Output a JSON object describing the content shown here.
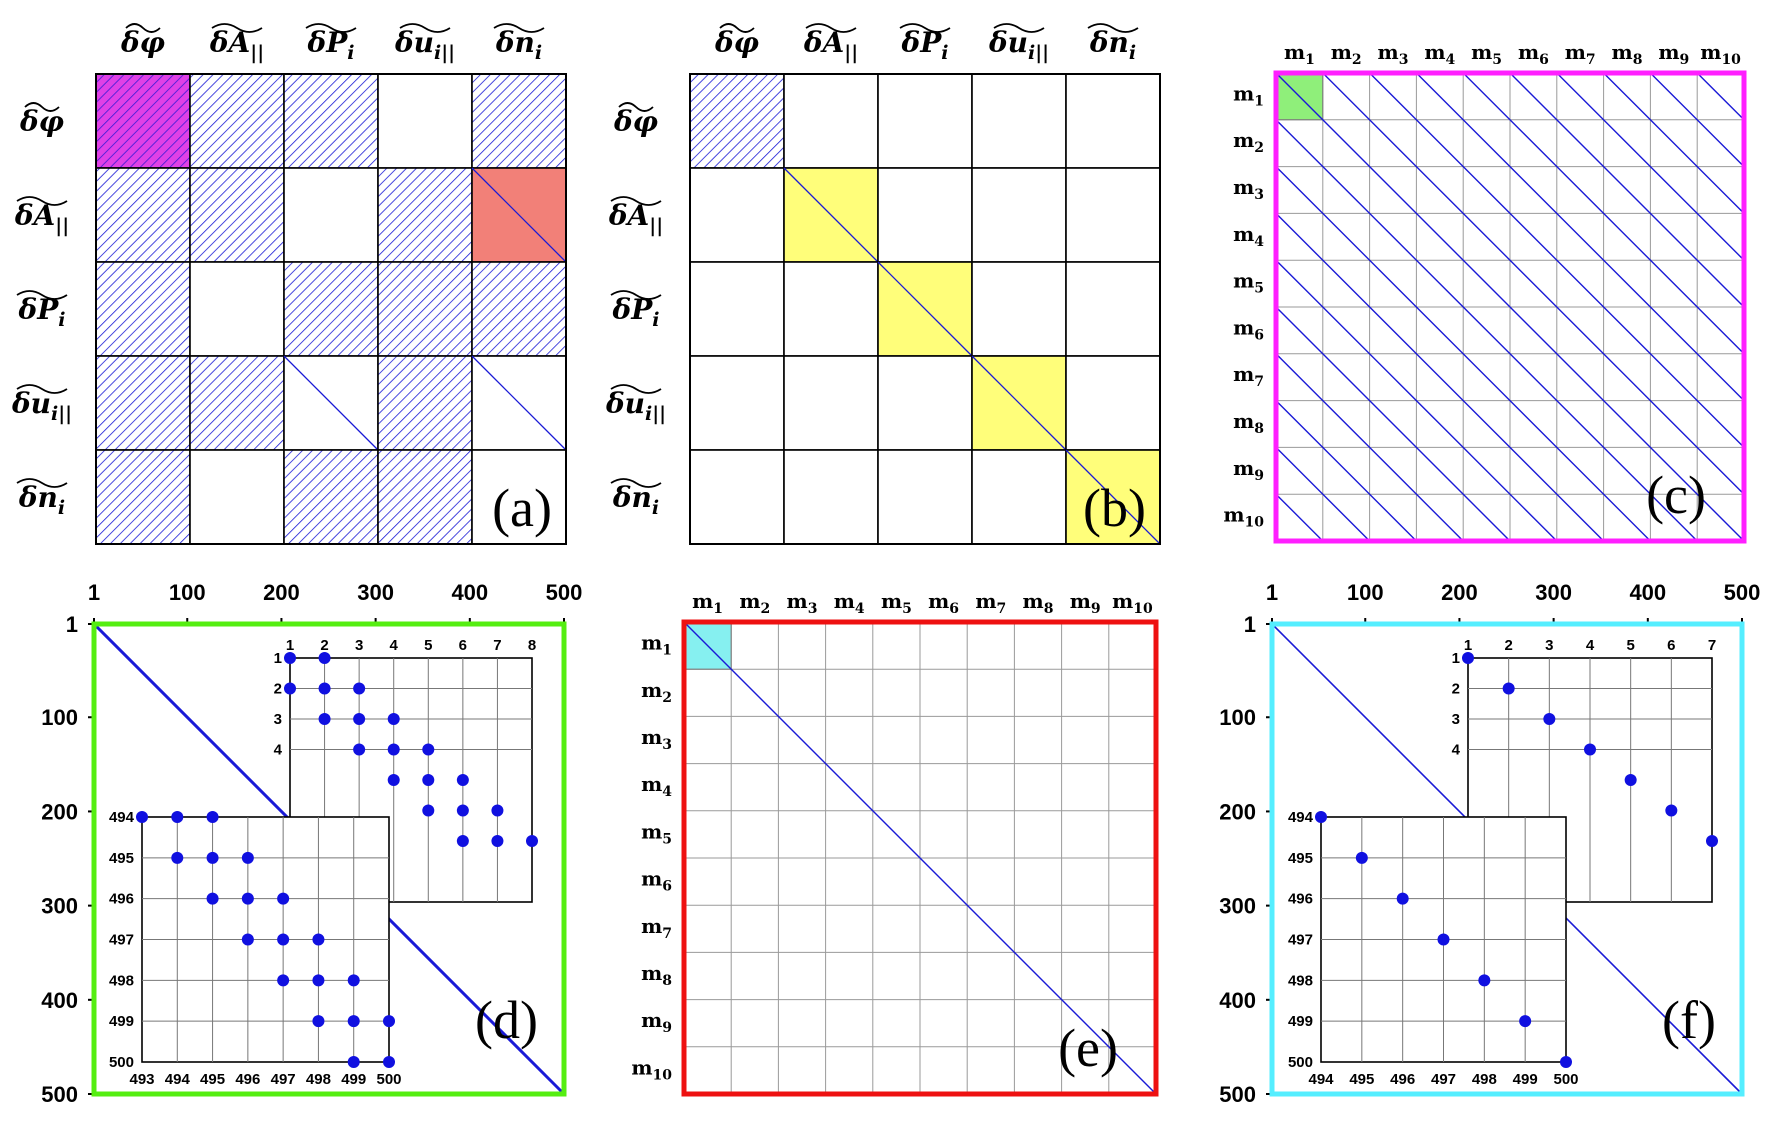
{
  "variables": [
    "δφ",
    "δA||",
    "δPi",
    "δui||",
    "δni"
  ],
  "modes": [
    "m1",
    "m2",
    "m3",
    "m4",
    "m5",
    "m6",
    "m7",
    "m8",
    "m9",
    "m10"
  ],
  "colors": {
    "hatch": "#1a1ad6",
    "magenta": "#e040e6",
    "salmon": "#f28078",
    "yellow": "#fffe7a",
    "green_light": "#8fef7a",
    "cyan_light": "#86f0f0",
    "frame_magenta": "#ff1fff",
    "frame_green": "#55ee11",
    "frame_red": "#ee1111",
    "frame_cyan": "#55eeff",
    "dot": "#1010e0"
  },
  "panels": {
    "a": {
      "tag": "(a)",
      "pattern": [
        [
          "magenta",
          "hatch",
          "hatch",
          "empty",
          "hatch"
        ],
        [
          "hatch",
          "hatch",
          "empty",
          "hatch",
          "salmon"
        ],
        [
          "hatch",
          "empty",
          "hatch",
          "hatch",
          "hatch"
        ],
        [
          "hatch",
          "hatch",
          "diag",
          "hatch",
          "diag"
        ],
        [
          "hatch",
          "empty",
          "hatch",
          "hatch",
          "empty"
        ]
      ]
    },
    "b": {
      "tag": "(b)",
      "pattern": [
        [
          "hatch",
          "empty",
          "empty",
          "empty",
          "empty"
        ],
        [
          "empty",
          "yellow",
          "empty",
          "empty",
          "empty"
        ],
        [
          "empty",
          "empty",
          "yellow",
          "empty",
          "empty"
        ],
        [
          "empty",
          "empty",
          "empty",
          "yellow",
          "empty"
        ],
        [
          "empty",
          "empty",
          "empty",
          "empty",
          "yellow"
        ]
      ]
    },
    "c": {
      "tag": "(c)"
    },
    "d": {
      "tag": "(d)",
      "axis_ticks": [
        "1",
        "100",
        "200",
        "300",
        "400",
        "500"
      ],
      "inset1_cols": [
        "1",
        "2",
        "3",
        "4",
        "5",
        "6",
        "7",
        "8"
      ],
      "inset1_rows": [
        "1",
        "2",
        "3",
        "4"
      ],
      "inset1_points": [
        [
          1,
          1
        ],
        [
          2,
          1
        ],
        [
          1,
          2
        ],
        [
          2,
          2
        ],
        [
          3,
          2
        ],
        [
          2,
          3
        ],
        [
          3,
          3
        ],
        [
          4,
          3
        ],
        [
          3,
          4
        ],
        [
          4,
          4
        ],
        [
          5,
          4
        ],
        [
          4,
          5
        ],
        [
          5,
          5
        ],
        [
          6,
          5
        ],
        [
          5,
          6
        ],
        [
          6,
          6
        ],
        [
          7,
          6
        ],
        [
          6,
          7
        ],
        [
          7,
          7
        ],
        [
          8,
          7
        ]
      ],
      "inset2_cols": [
        "493",
        "494",
        "495",
        "496",
        "497",
        "498",
        "499",
        "500"
      ],
      "inset2_rows": [
        "494",
        "495",
        "496",
        "497",
        "498",
        "499",
        "500"
      ],
      "inset2_points": [
        [
          493,
          494
        ],
        [
          494,
          494
        ],
        [
          495,
          494
        ],
        [
          494,
          495
        ],
        [
          495,
          495
        ],
        [
          496,
          495
        ],
        [
          495,
          496
        ],
        [
          496,
          496
        ],
        [
          497,
          496
        ],
        [
          496,
          497
        ],
        [
          497,
          497
        ],
        [
          498,
          497
        ],
        [
          497,
          498
        ],
        [
          498,
          498
        ],
        [
          499,
          498
        ],
        [
          498,
          499
        ],
        [
          499,
          499
        ],
        [
          500,
          499
        ],
        [
          499,
          500
        ],
        [
          500,
          500
        ]
      ]
    },
    "e": {
      "tag": "(e)"
    },
    "f": {
      "tag": "(f)",
      "axis_ticks": [
        "1",
        "100",
        "200",
        "300",
        "400",
        "500"
      ],
      "inset1_cols": [
        "1",
        "2",
        "3",
        "4",
        "5",
        "6",
        "7"
      ],
      "inset1_rows": [
        "1",
        "2",
        "3",
        "4"
      ],
      "inset1_points": [
        [
          1,
          1
        ],
        [
          2,
          2
        ],
        [
          3,
          3
        ],
        [
          4,
          4
        ],
        [
          5,
          5
        ],
        [
          6,
          6
        ],
        [
          7,
          7
        ]
      ],
      "inset2_cols": [
        "494",
        "495",
        "496",
        "497",
        "498",
        "499",
        "500"
      ],
      "inset2_rows": [
        "494",
        "495",
        "496",
        "497",
        "498",
        "499",
        "500"
      ],
      "inset2_points": [
        [
          494,
          494
        ],
        [
          495,
          495
        ],
        [
          496,
          496
        ],
        [
          497,
          497
        ],
        [
          498,
          498
        ],
        [
          499,
          499
        ],
        [
          500,
          500
        ]
      ]
    }
  }
}
